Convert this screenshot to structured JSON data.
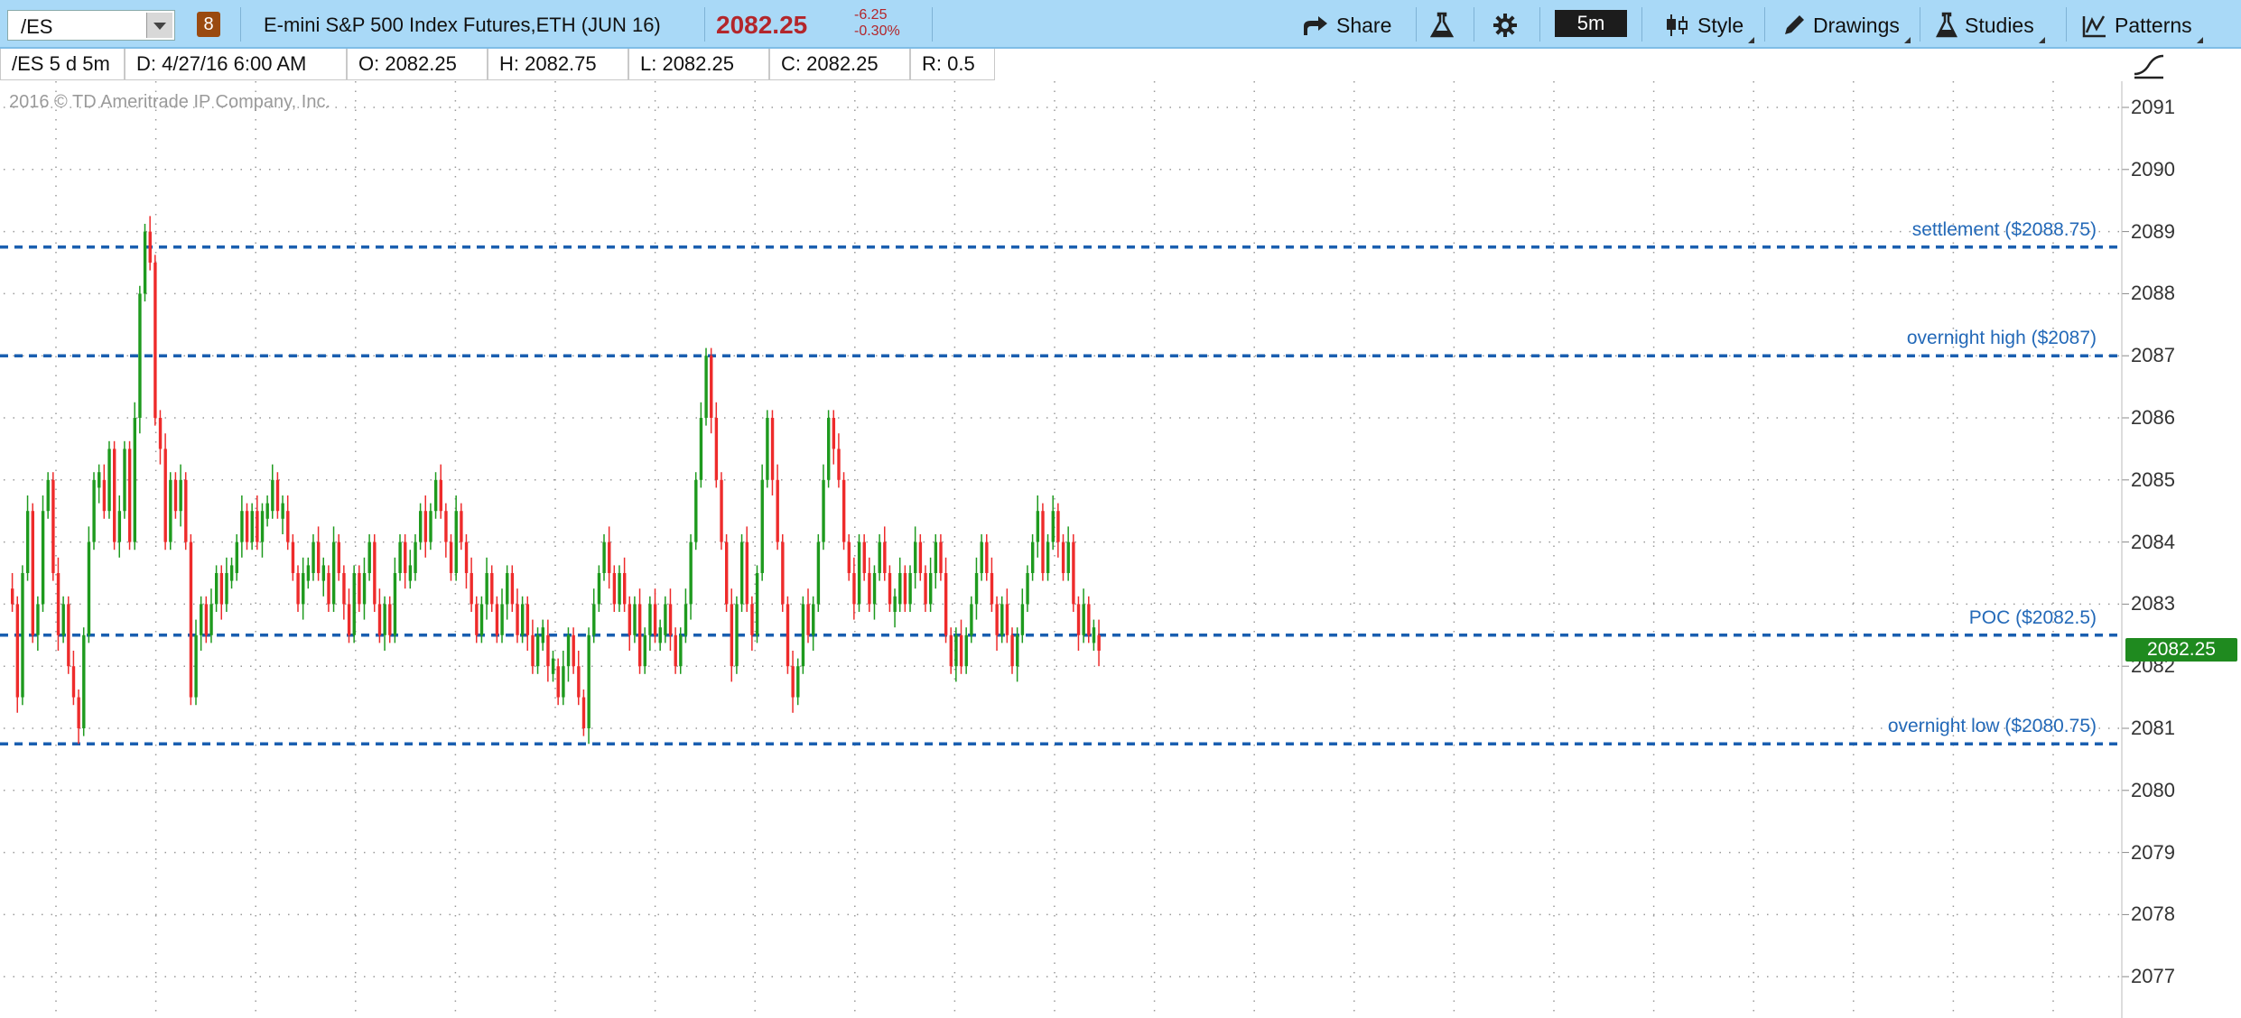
{
  "toolbar": {
    "symbol": "/ES",
    "link_number": "8",
    "description": "E-mini S&P 500 Index Futures,ETH (JUN 16)",
    "last_price": "2082.25",
    "net_change": "-6.25",
    "pct_change": "-0.30%",
    "share_label": "Share",
    "timeframe": "5m",
    "style_label": "Style",
    "drawings_label": "Drawings",
    "studies_label": "Studies",
    "patterns_label": "Patterns",
    "icons": [
      "share-icon",
      "flask-icon",
      "gear-icon",
      "candlestick-icon",
      "pencil-icon",
      "studies-flask-icon",
      "patterns-icon",
      "drawing-tool-icon"
    ]
  },
  "infobar": {
    "aggregation": "/ES 5 d 5m",
    "date": "D:  4/27/16 6:00 AM",
    "open": "O:  2082.25",
    "high": "H:  2082.75",
    "low": "L:  2082.25",
    "close": "C:  2082.25",
    "range": "R:  0.5"
  },
  "chart": {
    "copyright": "2016 © TD Ameritrade IP Company, Inc.",
    "current_price_badge": "2082.25",
    "colors": {
      "up": "#1e9a1e",
      "down": "#ee2b2b",
      "level": "#1a5fb0",
      "badge": "#1f8a1f"
    }
  },
  "chart_data": {
    "type": "candlestick",
    "ylim": [
      2076.75,
      2091.25
    ],
    "y_ticks": [
      "2091",
      "2090",
      "2089",
      "2088",
      "2087",
      "2086",
      "2085",
      "2084",
      "2083",
      "2082",
      "2081",
      "2080",
      "2079",
      "2078",
      "2077"
    ],
    "grid": true,
    "levels": [
      {
        "label": "settlement ($2088.75)",
        "value": 2088.75
      },
      {
        "label": "overnight high ($2087)",
        "value": 2087
      },
      {
        "label": "POC ($2082.5)",
        "value": 2082.5
      },
      {
        "label": "overnight low ($2080.75)",
        "value": 2080.75
      }
    ],
    "closes": [
      2083,
      2081.5,
      2083.5,
      2084.5,
      2082.5,
      2083,
      2084.5,
      2085,
      2083.5,
      2082.5,
      2083,
      2082,
      2081.5,
      2081,
      2082.5,
      2084,
      2085,
      2085,
      2084.5,
      2085.5,
      2084,
      2084.5,
      2085.5,
      2084,
      2086,
      2088,
      2089,
      2088.5,
      2086,
      2085.5,
      2084,
      2085,
      2084.5,
      2085,
      2084,
      2081.5,
      2082.5,
      2083,
      2082.5,
      2083,
      2083.5,
      2083,
      2083.5,
      2083.5,
      2084,
      2084.5,
      2084,
      2084.5,
      2084,
      2084.5,
      2084.5,
      2085,
      2084.5,
      2084.5,
      2084,
      2083.5,
      2083,
      2083.5,
      2083.5,
      2084,
      2083.5,
      2083.5,
      2083,
      2084,
      2083.5,
      2083,
      2082.5,
      2083.5,
      2083,
      2083.5,
      2084,
      2083,
      2082.5,
      2083,
      2082.5,
      2083.5,
      2084,
      2083.5,
      2083.5,
      2084,
      2084.5,
      2084,
      2084.5,
      2085,
      2084.5,
      2084,
      2083.5,
      2084.5,
      2084,
      2083.5,
      2083,
      2082.5,
      2083,
      2083.5,
      2083,
      2082.5,
      2083,
      2083.5,
      2083,
      2082.5,
      2083,
      2082.5,
      2082,
      2082.5,
      2082.5,
      2082,
      2082,
      2081.5,
      2082,
      2082.5,
      2082,
      2081.5,
      2081,
      2082.5,
      2083,
      2083.5,
      2084,
      2083.5,
      2083,
      2083.5,
      2083,
      2082.5,
      2083,
      2082,
      2082.5,
      2083,
      2082.5,
      2082.5,
      2083,
      2082.5,
      2082,
      2082.5,
      2083,
      2084,
      2085,
      2086,
      2087,
      2086,
      2085,
      2084,
      2083,
      2082,
      2083,
      2084,
      2083,
      2082.5,
      2083.5,
      2085,
      2086,
      2085,
      2084,
      2083,
      2082,
      2081.5,
      2082,
      2083,
      2082.5,
      2083,
      2084,
      2085,
      2086,
      2085.5,
      2085,
      2084,
      2083.5,
      2083,
      2084,
      2083.5,
      2083,
      2083.5,
      2084,
      2083.5,
      2083,
      2083,
      2083.5,
      2083,
      2083.5,
      2084,
      2083.5,
      2083,
      2083.5,
      2084,
      2083.5,
      2082.5,
      2082,
      2082.5,
      2082,
      2082.5,
      2083,
      2083.5,
      2084,
      2083.5,
      2083,
      2082.5,
      2083,
      2082.5,
      2082,
      2082.5,
      2083,
      2083.5,
      2084,
      2084.5,
      2083.5,
      2084,
      2084.5,
      2084,
      2083.5,
      2084,
      2083,
      2082.5,
      2083,
      2082.5,
      2082.5,
      2082.25
    ]
  }
}
